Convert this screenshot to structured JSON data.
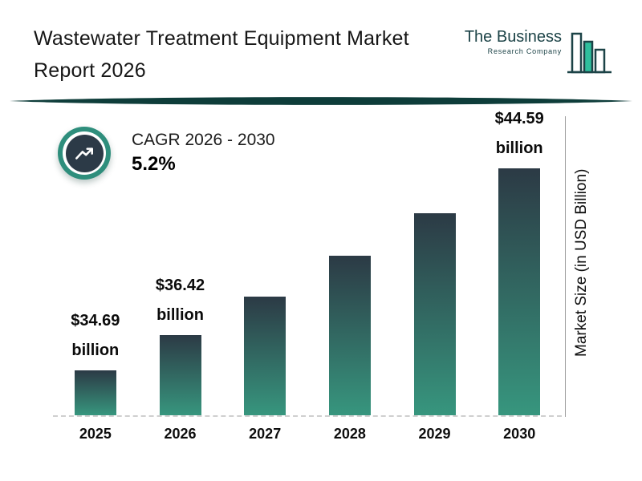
{
  "header": {
    "title_line1": "Wastewater Treatment Equipment Market",
    "title_line2": "Report 2026",
    "logo": {
      "line1": "The Business",
      "line2": "Research Company",
      "brand_color": "#1c4347",
      "accent_color": "#2fbf9d"
    }
  },
  "cagr": {
    "label": "CAGR 2026 - 2030",
    "value": "5.2%"
  },
  "chart_data": {
    "type": "bar",
    "title": "Wastewater Treatment Equipment Market Report 2026",
    "categories": [
      "2025",
      "2026",
      "2027",
      "2028",
      "2029",
      "2030"
    ],
    "values": [
      34.69,
      36.42,
      38.31,
      40.31,
      42.4,
      44.59
    ],
    "bar_labels": [
      "$34.69 billion",
      "$36.42 billion",
      null,
      null,
      null,
      "$44.59 billion"
    ],
    "xlabel": "",
    "ylabel": "Market Size (in USD Billion)",
    "ylim": [
      32.5,
      45
    ],
    "grid": false,
    "legend": false,
    "baseline_style": "dashed",
    "bar_gradient_top": "#2c3a45",
    "bar_gradient_bottom": "#37967e"
  }
}
